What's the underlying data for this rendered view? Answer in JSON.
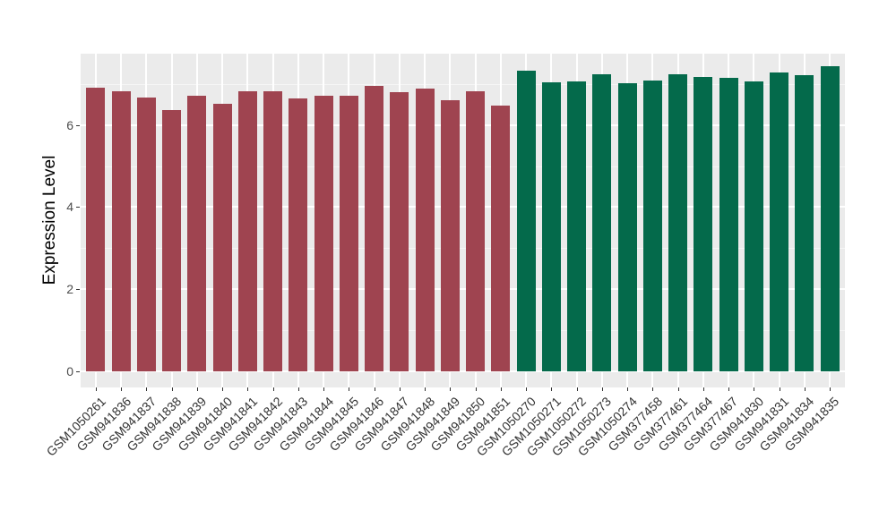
{
  "colors": {
    "panel_background": "#EBEBEB",
    "major_gridline": "#FFFFFF",
    "minor_gridline": "rgba(255,255,255,0.55)",
    "axis_text": "#4d4d4d",
    "tick_mark": "#333333"
  },
  "chart_data": {
    "type": "bar",
    "title": "",
    "xlabel": "",
    "ylabel": "Expression Level",
    "ylim": [
      0,
      7.7
    ],
    "yticks": [
      0,
      2,
      4,
      6
    ],
    "yticks_minor": [
      1,
      3,
      5,
      7
    ],
    "grid": true,
    "legend": false,
    "categories": [
      "GSM1050261",
      "GSM941836",
      "GSM941837",
      "GSM941838",
      "GSM941839",
      "GSM941840",
      "GSM941841",
      "GSM941842",
      "GSM941843",
      "GSM941844",
      "GSM941845",
      "GSM941846",
      "GSM941847",
      "GSM941848",
      "GSM941849",
      "GSM941850",
      "GSM941851",
      "GSM1050270",
      "GSM1050271",
      "GSM1050272",
      "GSM1050273",
      "GSM1050274",
      "GSM377458",
      "GSM377461",
      "GSM377464",
      "GSM377467",
      "GSM941830",
      "GSM941831",
      "GSM941834",
      "GSM941835"
    ],
    "values": [
      6.91,
      6.83,
      6.66,
      6.37,
      6.71,
      6.51,
      6.81,
      6.83,
      6.64,
      6.72,
      6.71,
      6.95,
      6.8,
      6.88,
      6.61,
      6.83,
      6.46,
      7.33,
      7.03,
      7.06,
      7.23,
      7.02,
      7.09,
      7.24,
      7.16,
      7.15,
      7.06,
      7.28,
      7.21,
      7.44
    ],
    "groups": [
      "groupA",
      "groupA",
      "groupA",
      "groupA",
      "groupA",
      "groupA",
      "groupA",
      "groupA",
      "groupA",
      "groupA",
      "groupA",
      "groupA",
      "groupA",
      "groupA",
      "groupA",
      "groupA",
      "groupA",
      "groupB",
      "groupB",
      "groupB",
      "groupB",
      "groupB",
      "groupB",
      "groupB",
      "groupB",
      "groupB",
      "groupB",
      "groupB",
      "groupB",
      "groupB"
    ],
    "group_colors": {
      "groupA": "#9F4450",
      "groupB": "#046A4B"
    }
  }
}
